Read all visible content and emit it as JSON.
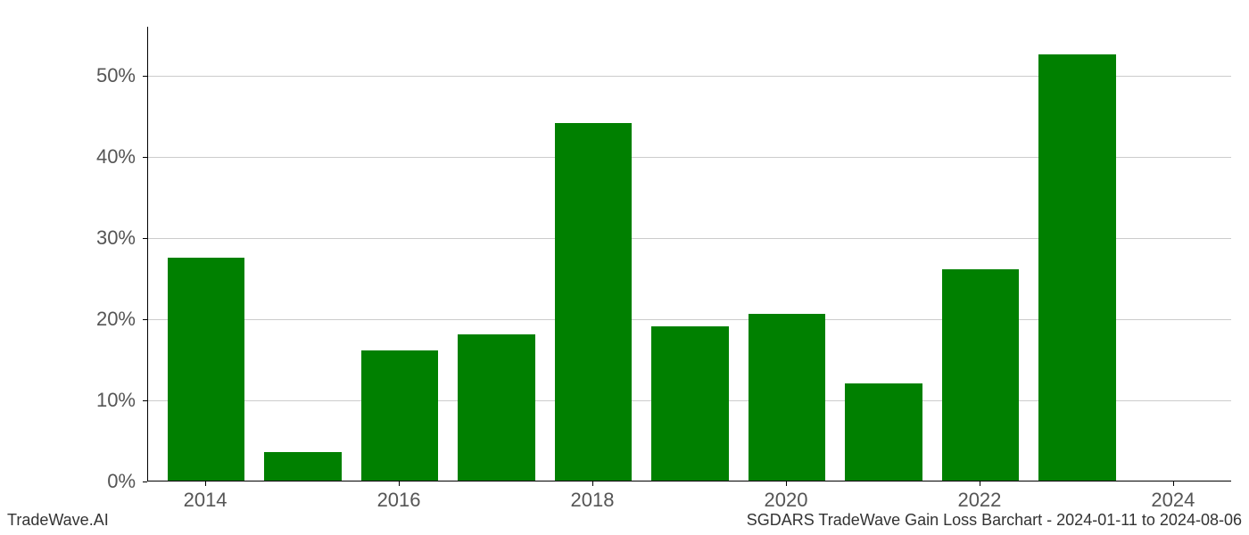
{
  "chart": {
    "type": "bar",
    "years": [
      2014,
      2015,
      2016,
      2017,
      2018,
      2019,
      2020,
      2021,
      2022,
      2023,
      2024
    ],
    "values": [
      27.5,
      3.5,
      16.0,
      18.0,
      44.0,
      19.0,
      20.5,
      12.0,
      26.0,
      52.5,
      0
    ],
    "bar_color": "#008000",
    "background_color": "#ffffff",
    "grid_color": "#cccccc",
    "axis_color": "#000000",
    "tick_label_color": "#555555",
    "y_ticks": [
      0,
      10,
      20,
      30,
      40,
      50
    ],
    "y_tick_labels": [
      "0%",
      "10%",
      "20%",
      "30%",
      "40%",
      "50%"
    ],
    "x_ticks": [
      2014,
      2016,
      2018,
      2020,
      2022,
      2024
    ],
    "x_tick_labels": [
      "2014",
      "2016",
      "2018",
      "2020",
      "2022",
      "2024"
    ],
    "ylim": [
      0,
      56
    ],
    "xlim_start": 2013.4,
    "xlim_end": 2024.6,
    "bar_width_years": 0.8,
    "tick_fontsize": 22,
    "footer_fontsize": 18
  },
  "footer": {
    "left": "TradeWave.AI",
    "right": "SGDARS TradeWave Gain Loss Barchart - 2024-01-11 to 2024-08-06"
  }
}
